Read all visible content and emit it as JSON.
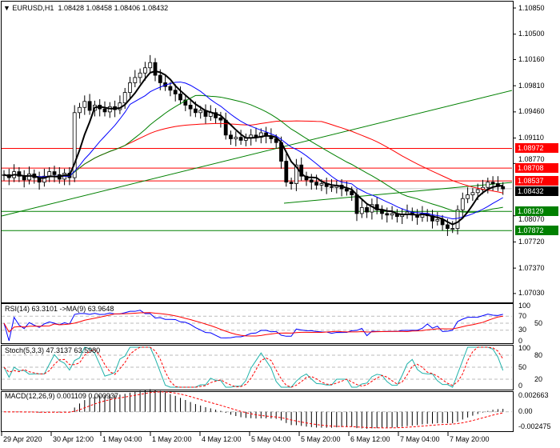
{
  "header": {
    "symbol": "EURUSD,H1",
    "open": "1.08428",
    "high": "1.08458",
    "low": "1.08406",
    "close": "1.08432"
  },
  "price_axis": [
    "1.10850",
    "1.10500",
    "1.10160",
    "1.09810",
    "1.09460",
    "1.09110",
    "1.08770",
    "1.08070",
    "1.07720",
    "1.07370",
    "1.07030"
  ],
  "levels": [
    {
      "price": 1.08972,
      "label": "1.08972",
      "color": "#ff0000",
      "line": "#ff0000"
    },
    {
      "price": 1.08708,
      "label": "1.08708",
      "color": "#ff0000",
      "line": "#ff0000"
    },
    {
      "price": 1.08537,
      "label": "1.08537",
      "color": "#ff0000",
      "line": "#ff0000"
    },
    {
      "price": 1.08432,
      "label": "1.08432",
      "color": "#000000",
      "line": "#c0c0c0"
    },
    {
      "price": 1.08129,
      "label": "1.08129",
      "color": "#008000",
      "line": "#008000"
    },
    {
      "price": 1.07872,
      "label": "1.07872",
      "color": "#008000",
      "line": "#008000"
    }
  ],
  "indicators": {
    "rsi": {
      "label": "RSI(14) 63.3101  ->MA(9) 63.9648",
      "ticks": [
        "100",
        "70",
        "50",
        "30",
        "0"
      ]
    },
    "stoch": {
      "label": "Stoch(5,3,3) 47.3137 63.5980",
      "ticks": [
        "100",
        "80",
        "50",
        "20",
        "0"
      ]
    },
    "macd": {
      "label": "MACD(12,26,9) 0.001109 0.000937",
      "ticks": [
        "0.002663",
        "0.00",
        "-0.002475"
      ]
    }
  },
  "time_axis": [
    "29 Apr 2020",
    "30 Apr 12:00",
    "1 May 04:00",
    "1 May 20:00",
    "4 May 12:00",
    "5 May 04:00",
    "5 May 20:00",
    "6 May 12:00",
    "7 May 04:00",
    "7 May 20:00"
  ],
  "colors": {
    "bull": "#000000",
    "bear": "#000000",
    "ma_fast": "#000000",
    "ma_mid": "#0000ff",
    "ma_slow": "#008000",
    "ma_long": "#ff0000"
  },
  "chart_data": {
    "type": "candlestick",
    "closes": [
      1.0862,
      1.0858,
      1.0866,
      1.086,
      1.0855,
      1.0863,
      1.0858,
      1.0852,
      1.086,
      1.0866,
      1.0862,
      1.0856,
      1.0864,
      1.0858,
      1.0945,
      1.0952,
      1.096,
      1.0948,
      1.0955,
      1.095,
      1.0946,
      1.0953,
      1.0949,
      1.0958,
      1.0972,
      1.0985,
      1.0992,
      1.0998,
      1.1005,
      1.1012,
      1.0995,
      1.0985,
      1.098,
      1.0975,
      1.097,
      1.0962,
      1.0955,
      1.095,
      1.0945,
      1.0948,
      1.094,
      1.0945,
      1.0938,
      1.0935,
      1.0915,
      1.091,
      1.0912,
      1.0908,
      1.0911,
      1.0915,
      1.0912,
      1.0918,
      1.0914,
      1.091,
      1.0905,
      1.088,
      1.0852,
      1.085,
      1.0875,
      1.086,
      1.0855,
      1.0852,
      1.0848,
      1.085,
      1.0846,
      1.0845,
      1.0848,
      1.0843,
      1.084,
      1.0835,
      1.081,
      1.0818,
      1.0812,
      1.0822,
      1.0815,
      1.081,
      1.0808,
      1.081,
      1.0806,
      1.0809,
      1.0812,
      1.0808,
      1.0805,
      1.081,
      1.0807,
      1.08,
      1.0802,
      1.0795,
      1.079,
      1.079,
      1.0815,
      1.083,
      1.0835,
      1.0838,
      1.0842,
      1.0845,
      1.0852,
      1.085,
      1.0846,
      1.0843
    ],
    "ylim": [
      1.0703,
      1.1085
    ]
  }
}
